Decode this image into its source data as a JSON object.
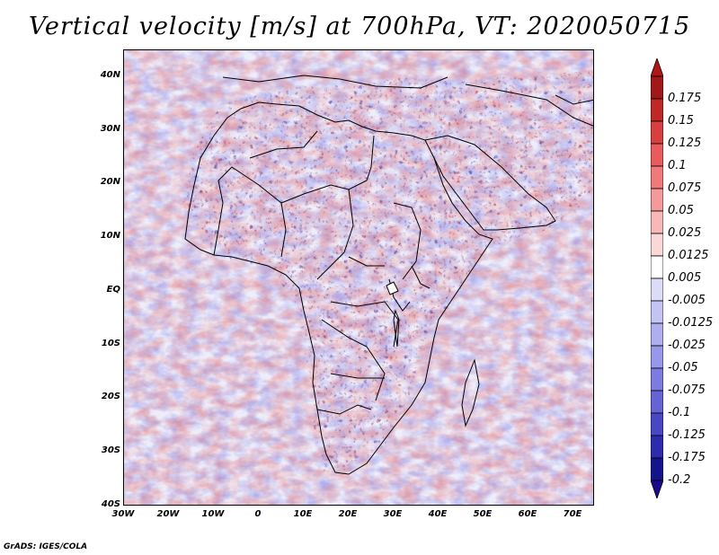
{
  "title": "Vertical velocity [m/s] at 700hPa, VT: 2020050715",
  "map": {
    "lat_labels": [
      "40N",
      "30N",
      "20N",
      "10N",
      "EQ",
      "10S",
      "20S",
      "30S",
      "40S"
    ],
    "lon_labels": [
      "30W",
      "20W",
      "10W",
      "0",
      "10E",
      "20E",
      "30E",
      "40E",
      "50E",
      "60E",
      "70E"
    ],
    "lat_range": [
      -40,
      44
    ],
    "lon_range": [
      -30,
      75
    ]
  },
  "colorbar": {
    "labels": [
      "0.175",
      "0.15",
      "0.125",
      "0.1",
      "0.075",
      "0.05",
      "0.025",
      "0.0125",
      "0.005",
      "-0.005",
      "-0.0125",
      "-0.025",
      "-0.05",
      "-0.075",
      "-0.1",
      "-0.125",
      "-0.175",
      "-0.2"
    ],
    "colors": [
      "#a01818",
      "#c02828",
      "#d84040",
      "#e85c5c",
      "#f07a7a",
      "#f49a9a",
      "#f8b8b8",
      "#fbd8d8",
      "#ffffff",
      "#dcdcf8",
      "#c4c4f4",
      "#aeaef0",
      "#9898ea",
      "#7c7ce0",
      "#6464d4",
      "#4848c4",
      "#2c2cac",
      "#14148c"
    ],
    "top_arrow_color": "#b01818",
    "bottom_arrow_color": "#1a0a8a"
  },
  "credit": "GrADS: IGES/COLA"
}
